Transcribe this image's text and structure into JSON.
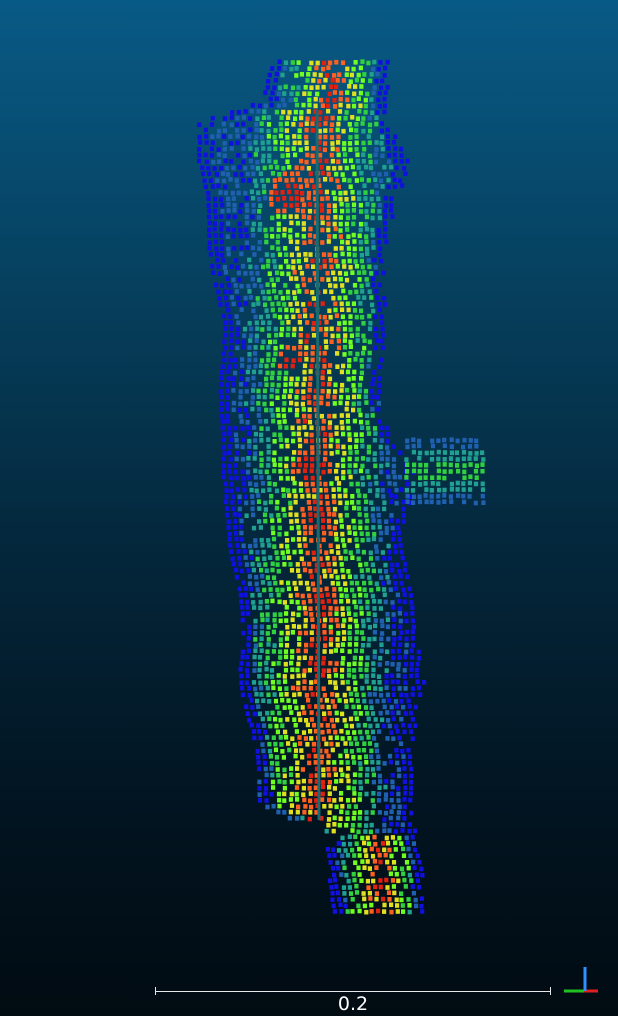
{
  "view": {
    "type": "point-cloud-viewer",
    "background_top": "#085a86",
    "background_bottom": "#010b12",
    "colormap": [
      "#1010e0",
      "#2060b0",
      "#20a090",
      "#30d040",
      "#70ff20",
      "#e0e020",
      "#ff6020",
      "#e02010"
    ]
  },
  "scale_bar": {
    "label": "0.2",
    "color": "#e8e8e8"
  },
  "axes": {
    "x_color": "#e02020",
    "y_color": "#20c020",
    "z_color": "#3090ff"
  }
}
